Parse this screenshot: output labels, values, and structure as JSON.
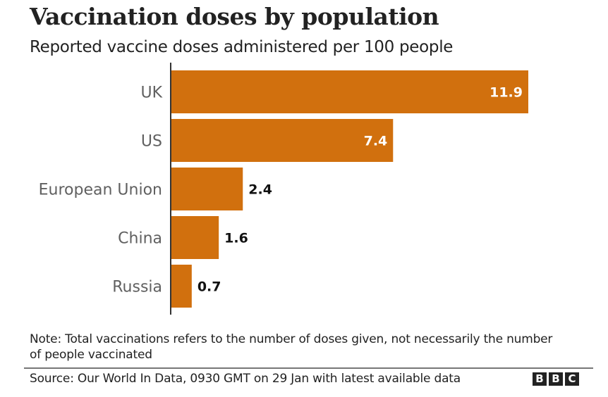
{
  "header": {
    "title": "Vaccination doses by population",
    "subtitle": "Reported vaccine doses administered per 100 people"
  },
  "chart_data": {
    "type": "bar",
    "orientation": "horizontal",
    "title": "Vaccination doses by population",
    "subtitle": "Reported vaccine doses administered per 100 people",
    "categories": [
      "UK",
      "US",
      "European Union",
      "China",
      "Russia"
    ],
    "values": [
      11.9,
      7.4,
      2.4,
      1.6,
      0.7
    ],
    "value_labels": [
      "11.9",
      "7.4",
      "2.4",
      "1.6",
      "0.7"
    ],
    "xlabel": "",
    "ylabel": "",
    "xlim": [
      0,
      11.9
    ],
    "grid": false,
    "bar_color": "#d1700e",
    "inside_label_color": "#ffffff",
    "outside_label_color": "#111111"
  },
  "footer": {
    "note": "Note: Total vaccinations refers to the number of doses given, not necessarily the number of people vaccinated",
    "source": "Source: Our World In Data, 0930 GMT on 29 Jan with latest available data",
    "logo_letters": [
      "B",
      "B",
      "C"
    ]
  }
}
